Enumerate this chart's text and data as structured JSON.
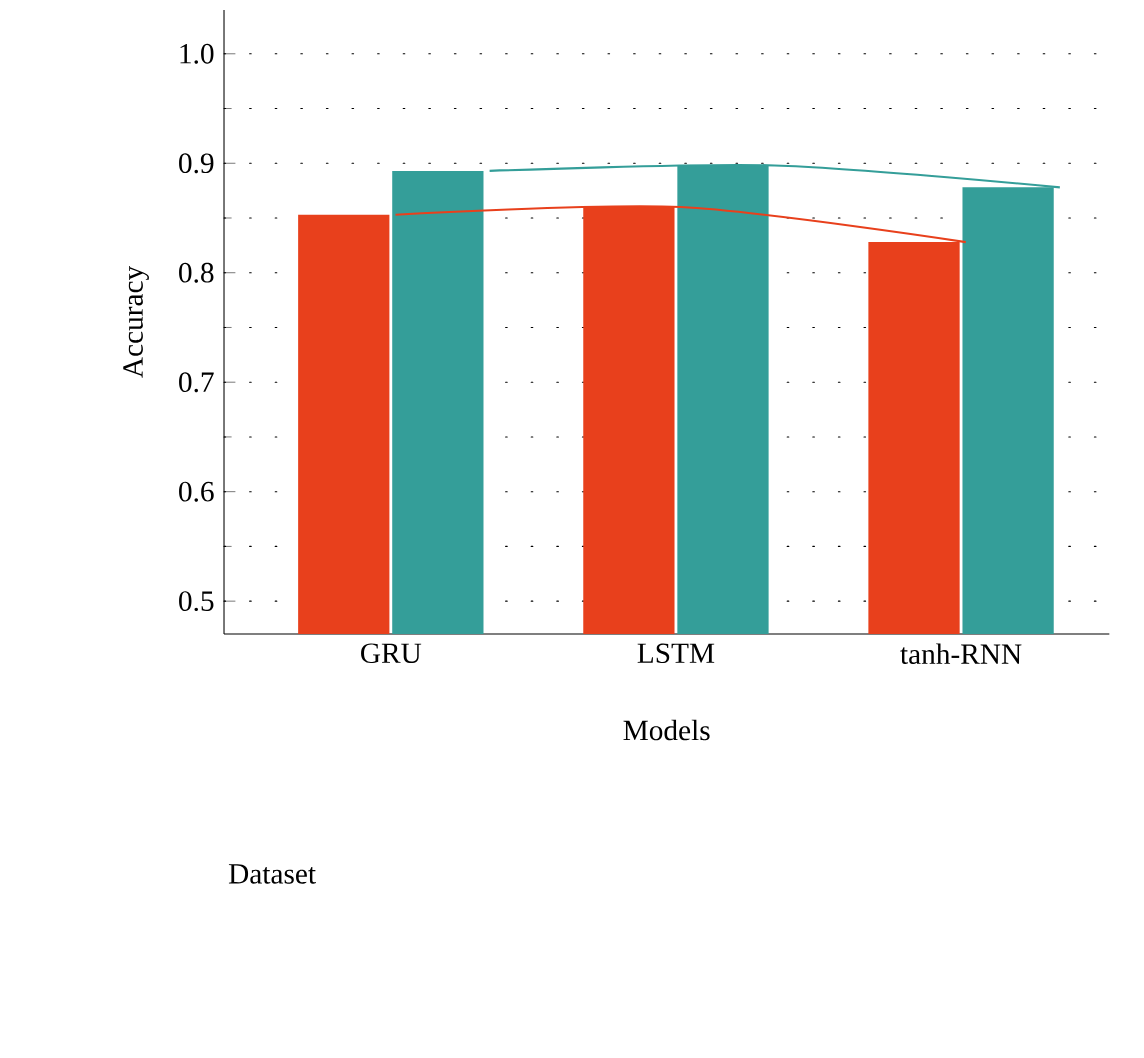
{
  "chart_data": {
    "type": "bar",
    "xlabel": "Models",
    "ylabel": "Accuracy",
    "legend_title": "Dataset",
    "grid": "y",
    "categories": [
      "GRU",
      "LSTM",
      "tanh-RNN"
    ],
    "ylim": [
      0.47,
      1.04
    ],
    "yticks": [
      0.5,
      0.6,
      0.7,
      0.8,
      0.9,
      {
        "value": 1.0,
        "label": "1.0"
      }
    ],
    "series": [
      {
        "color": "#e8401c",
        "values": [
          0.853,
          0.86,
          0.828
        ]
      },
      {
        "color": "#349e99",
        "values": [
          0.893,
          0.898,
          0.878
        ]
      },
      {
        "type": "line",
        "color": "#e8401c",
        "values": [
          0.853,
          0.86,
          0.828
        ]
      },
      {
        "type": "line",
        "color": "#349e99",
        "values": [
          0.893,
          0.898,
          0.878
        ]
      }
    ]
  }
}
